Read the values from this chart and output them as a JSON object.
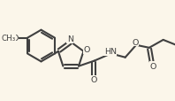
{
  "bg_color": "#fbf6ea",
  "line_color": "#404040",
  "line_width": 1.5,
  "font_size": 6.8,
  "fig_width": 1.98,
  "fig_height": 1.15,
  "dpi": 100,
  "xlim": [
    0,
    10
  ],
  "ylim": [
    0,
    5.8
  ]
}
